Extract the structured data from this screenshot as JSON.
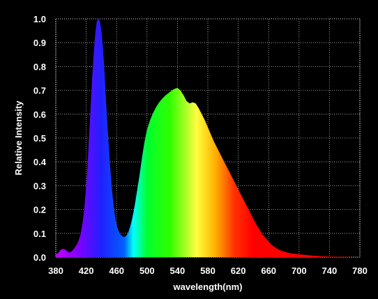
{
  "chart_data": {
    "type": "area",
    "xlabel": "wavelength(nm)",
    "ylabel": "Relative Intensity",
    "xlim": [
      380,
      780
    ],
    "ylim": [
      0,
      1.0
    ],
    "x_ticks": [
      "380",
      "420",
      "460",
      "500",
      "540",
      "580",
      "620",
      "660",
      "700",
      "740",
      "780"
    ],
    "y_ticks": [
      "0.0",
      "0.1",
      "0.2",
      "0.3",
      "0.4",
      "0.5",
      "0.6",
      "0.7",
      "0.8",
      "0.9",
      "1.0"
    ],
    "grid": true,
    "background": "#000000",
    "series": [
      {
        "x": [
          380,
          382,
          384,
          386,
          388,
          390,
          392,
          394,
          396,
          398,
          400,
          402,
          404,
          406,
          408,
          410,
          412,
          414,
          416,
          418,
          420,
          422,
          424,
          426,
          428,
          430,
          432,
          434,
          436,
          438,
          440,
          442,
          444,
          446,
          448,
          450,
          452,
          454,
          456,
          458,
          460,
          462,
          464,
          466,
          468,
          470,
          472,
          474,
          476,
          478,
          480,
          482,
          484,
          486,
          488,
          490,
          492,
          494,
          496,
          498,
          500,
          504,
          508,
          512,
          516,
          520,
          524,
          528,
          532,
          536,
          540,
          544,
          548,
          552,
          556,
          560,
          564,
          568,
          572,
          576,
          580,
          584,
          588,
          592,
          596,
          600,
          604,
          608,
          612,
          616,
          620,
          624,
          628,
          632,
          636,
          640,
          644,
          648,
          652,
          656,
          660,
          664,
          668,
          672,
          676,
          680,
          684,
          688,
          692,
          696,
          700,
          704,
          708,
          712,
          716,
          720,
          724,
          728,
          732,
          736,
          740,
          744,
          748,
          752,
          756,
          760,
          764,
          768,
          772,
          776,
          780
        ],
        "y": [
          0.01,
          0.015,
          0.02,
          0.03,
          0.033,
          0.035,
          0.032,
          0.028,
          0.022,
          0.02,
          0.022,
          0.028,
          0.036,
          0.045,
          0.055,
          0.07,
          0.09,
          0.12,
          0.16,
          0.22,
          0.3,
          0.4,
          0.52,
          0.64,
          0.76,
          0.86,
          0.94,
          0.99,
          1.0,
          0.99,
          0.95,
          0.88,
          0.78,
          0.66,
          0.55,
          0.45,
          0.36,
          0.28,
          0.22,
          0.17,
          0.135,
          0.115,
          0.1,
          0.092,
          0.087,
          0.085,
          0.088,
          0.095,
          0.11,
          0.13,
          0.155,
          0.185,
          0.22,
          0.26,
          0.3,
          0.34,
          0.385,
          0.43,
          0.47,
          0.505,
          0.535,
          0.575,
          0.605,
          0.63,
          0.65,
          0.665,
          0.678,
          0.688,
          0.698,
          0.706,
          0.71,
          0.7,
          0.68,
          0.655,
          0.645,
          0.65,
          0.645,
          0.625,
          0.6,
          0.575,
          0.545,
          0.515,
          0.485,
          0.46,
          0.435,
          0.41,
          0.385,
          0.36,
          0.335,
          0.31,
          0.285,
          0.26,
          0.235,
          0.21,
          0.185,
          0.16,
          0.135,
          0.115,
          0.095,
          0.08,
          0.065,
          0.052,
          0.042,
          0.034,
          0.028,
          0.024,
          0.02,
          0.017,
          0.015,
          0.013,
          0.012,
          0.011,
          0.01,
          0.008,
          0.007,
          0.006,
          0.005,
          0.004,
          0.003,
          0.003,
          0.002,
          0.002,
          0.002,
          0.001,
          0.001,
          0.001,
          0.001,
          0.0,
          0.0,
          0.0,
          0.0
        ]
      }
    ],
    "fill_colors": [
      {
        "nm": 380,
        "color": "#c000ff"
      },
      {
        "nm": 410,
        "color": "#8000ff"
      },
      {
        "nm": 440,
        "color": "#2020ff"
      },
      {
        "nm": 470,
        "color": "#0060ff"
      },
      {
        "nm": 482,
        "color": "#00ffff"
      },
      {
        "nm": 500,
        "color": "#00ff30"
      },
      {
        "nm": 530,
        "color": "#30ff00"
      },
      {
        "nm": 565,
        "color": "#ffff40"
      },
      {
        "nm": 590,
        "color": "#ffb000"
      },
      {
        "nm": 615,
        "color": "#ff3000"
      },
      {
        "nm": 640,
        "color": "#ff0000"
      },
      {
        "nm": 780,
        "color": "#ff0000"
      }
    ],
    "gridline_color": "#ffffff"
  }
}
